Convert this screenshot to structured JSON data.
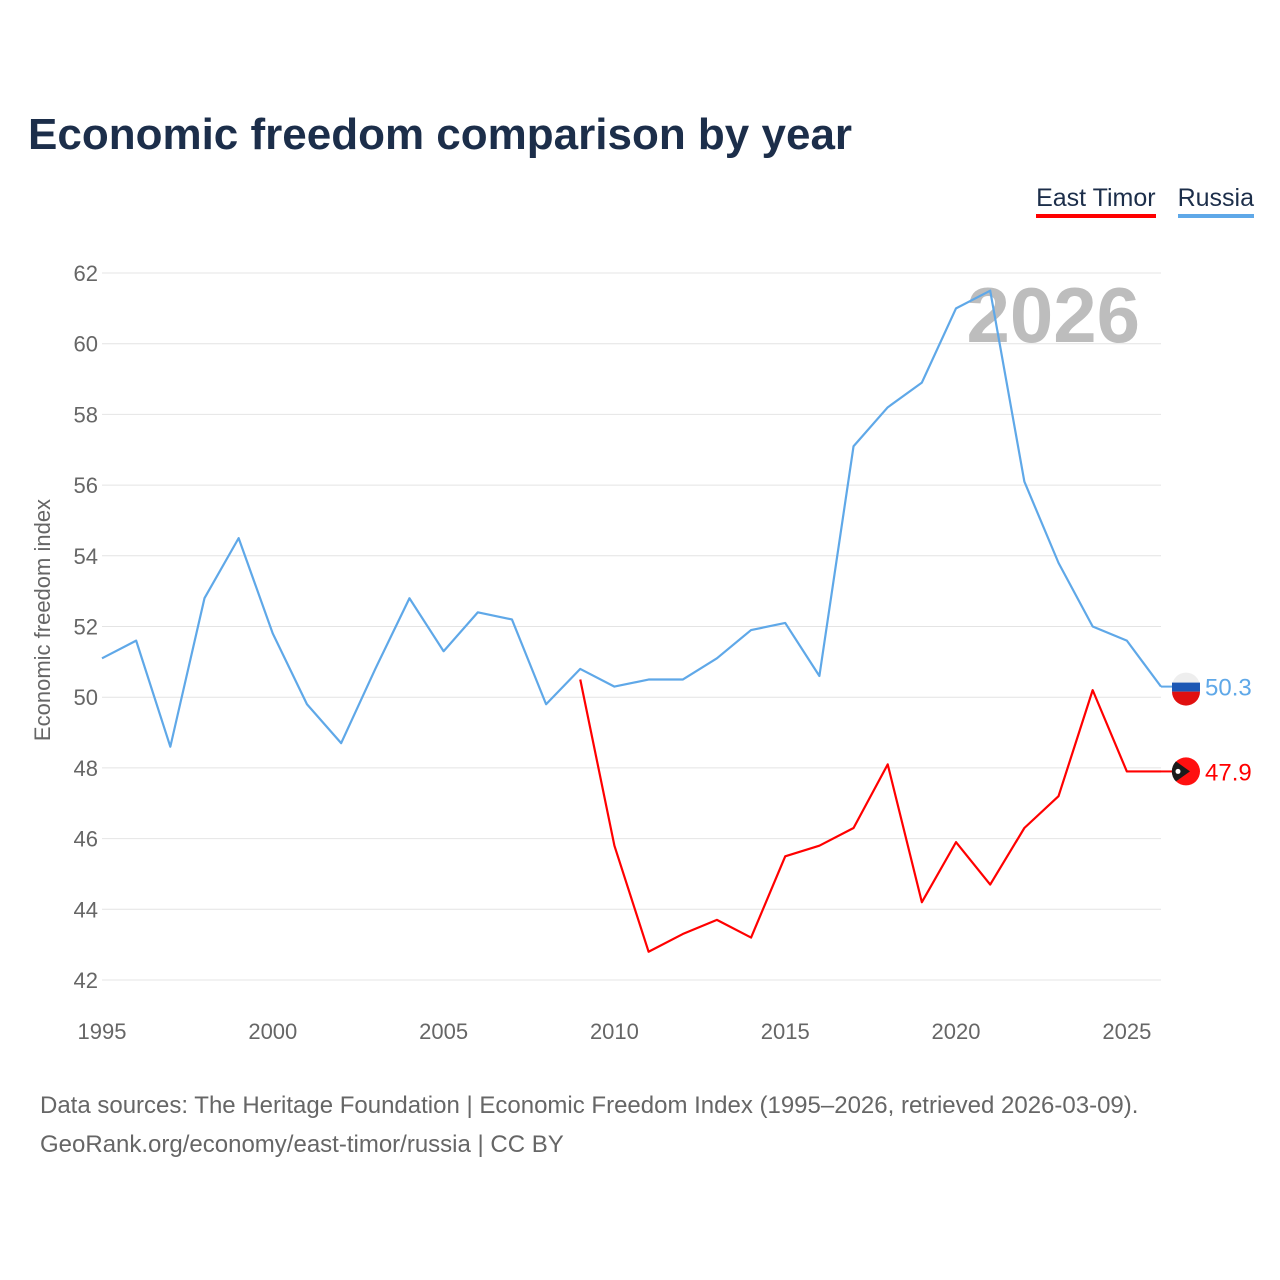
{
  "title": "Economic freedom comparison by year",
  "footer": {
    "line1": "Data sources: The Heritage Foundation | Economic Freedom Index (1995–2026, retrieved 2026-03-09).",
    "line2": "GeoRank.org/economy/east-timor/russia | CC BY"
  },
  "chart_data": {
    "type": "line",
    "title": "Economic freedom comparison by year",
    "xlabel": "",
    "ylabel": "Economic freedom index",
    "xlim": [
      1995,
      2026
    ],
    "ylim": [
      42,
      62
    ],
    "xticks": [
      "1995",
      "2000",
      "2005",
      "2010",
      "2015",
      "2020",
      "2025"
    ],
    "yticks": [
      "42",
      "44",
      "46",
      "48",
      "50",
      "52",
      "54",
      "56",
      "58",
      "60",
      "62"
    ],
    "grid": true,
    "legend_position": "top-right",
    "year_watermark": "2026",
    "series": [
      {
        "name": "East Timor",
        "color": "#ff0000",
        "end_label": "47.9",
        "x": [
          2009,
          2010,
          2011,
          2012,
          2013,
          2014,
          2015,
          2016,
          2017,
          2018,
          2019,
          2020,
          2021,
          2022,
          2023,
          2024,
          2025,
          2026
        ],
        "values": [
          50.5,
          45.8,
          42.8,
          43.3,
          43.7,
          43.2,
          45.5,
          45.8,
          46.3,
          48.1,
          44.2,
          45.9,
          44.7,
          46.3,
          47.2,
          50.2,
          47.9,
          47.9
        ]
      },
      {
        "name": "Russia",
        "color": "#5fa8e8",
        "end_label": "50.3",
        "x": [
          1995,
          1996,
          1997,
          1998,
          1999,
          2000,
          2001,
          2002,
          2003,
          2004,
          2005,
          2006,
          2007,
          2008,
          2009,
          2010,
          2011,
          2012,
          2013,
          2014,
          2015,
          2016,
          2017,
          2018,
          2019,
          2020,
          2021,
          2022,
          2023,
          2024,
          2025,
          2026
        ],
        "values": [
          51.1,
          51.6,
          48.6,
          52.8,
          54.5,
          51.8,
          49.8,
          48.7,
          50.8,
          52.8,
          51.3,
          52.4,
          52.2,
          49.8,
          50.8,
          50.3,
          50.5,
          50.5,
          51.1,
          51.9,
          52.1,
          50.6,
          57.1,
          58.2,
          58.9,
          61.0,
          61.5,
          56.1,
          53.8,
          52.0,
          51.6,
          50.3
        ]
      }
    ]
  }
}
